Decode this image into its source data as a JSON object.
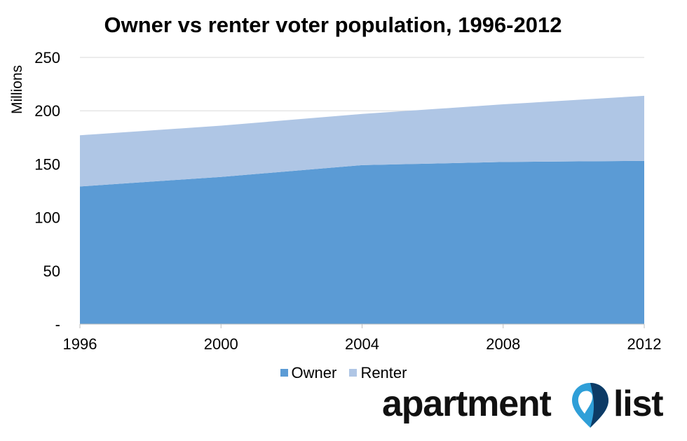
{
  "chart_data": {
    "type": "area",
    "stacked": true,
    "title": "Owner vs renter voter population, 1996-2012",
    "ylabel": "Millions",
    "xlabel": "",
    "x": [
      "1996",
      "2000",
      "2004",
      "2008",
      "2012"
    ],
    "x_ticks": [
      "1996",
      "2000",
      "2004",
      "2008",
      "2012"
    ],
    "y_ticks": [
      "-",
      "50",
      "100",
      "150",
      "200",
      "250"
    ],
    "ylim": [
      0,
      250
    ],
    "grid": true,
    "legend_position": "bottom",
    "series": [
      {
        "name": "Owner",
        "values": [
          129,
          138,
          149,
          152,
          153
        ],
        "color": "#5b9bd5"
      },
      {
        "name": "Renter",
        "values": [
          48,
          48,
          48,
          54,
          61
        ],
        "color": "#afc6e5"
      }
    ]
  },
  "logo": {
    "text_left": "apartment",
    "text_right": "list",
    "icon": "map-pin-icon",
    "pin_colors": [
      "#2f9fd8",
      "#1f6fa8",
      "#0d3b66"
    ]
  }
}
